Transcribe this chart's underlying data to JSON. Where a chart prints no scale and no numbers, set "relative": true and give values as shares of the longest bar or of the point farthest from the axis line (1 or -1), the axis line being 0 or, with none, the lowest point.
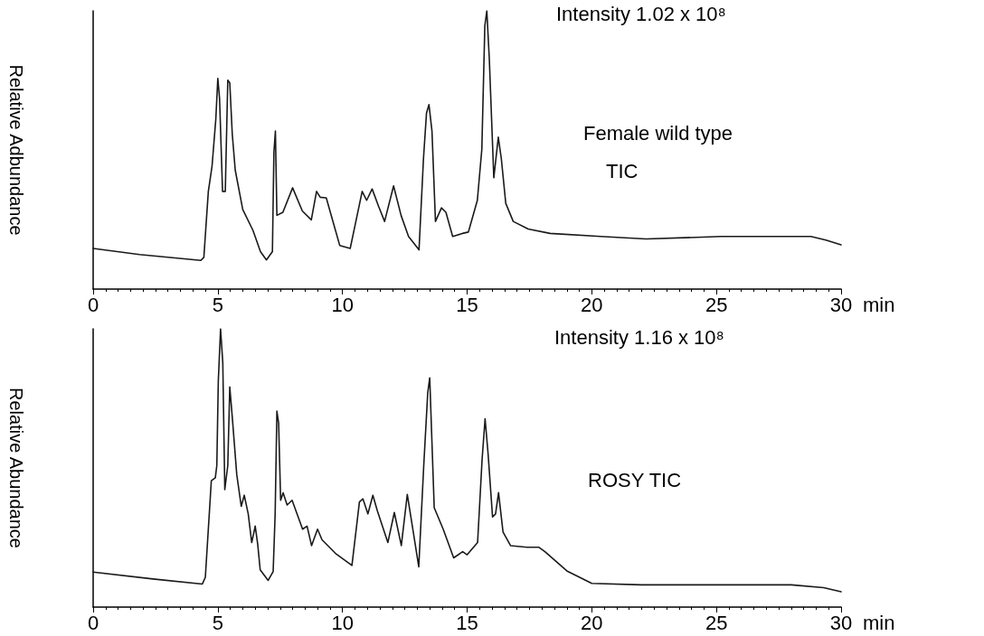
{
  "chart_data": [
    {
      "type": "line",
      "ylabel": "Relative Adbundance",
      "xlabel": "min",
      "relative": true,
      "color": "#1a1a1a",
      "marker": "none",
      "line_style": "solid",
      "xlim": [
        0,
        30
      ],
      "xticks": [
        0,
        5,
        10,
        15,
        20,
        25,
        30
      ],
      "annotations": [
        "Intensity 1.02 x 10⁸",
        "Female wild type",
        "TIC"
      ],
      "x": [
        0,
        1.86,
        4.32,
        4.44,
        4.62,
        4.77,
        4.92,
        5.0,
        5.07,
        5.19,
        5.3,
        5.4,
        5.48,
        5.58,
        5.7,
        6.0,
        6.41,
        6.71,
        6.95,
        7.19,
        7.25,
        7.31,
        7.37,
        7.61,
        8.0,
        8.39,
        8.75,
        8.96,
        9.11,
        9.35,
        9.89,
        10.31,
        10.79,
        10.97,
        11.19,
        11.45,
        11.69,
        12.05,
        12.35,
        12.65,
        13.07,
        13.25,
        13.37,
        13.47,
        13.59,
        13.73,
        13.97,
        14.15,
        14.42,
        14.81,
        15.05,
        15.41,
        15.59,
        15.71,
        15.79,
        15.89,
        16.07,
        16.25,
        16.37,
        16.55,
        16.85,
        17.45,
        18.33,
        20.37,
        22.18,
        25.18,
        28.79,
        29.39,
        30
      ],
      "values": [
        0.146,
        0.124,
        0.103,
        0.114,
        0.351,
        0.443,
        0.611,
        0.757,
        0.686,
        0.351,
        0.351,
        0.751,
        0.741,
        0.557,
        0.427,
        0.286,
        0.211,
        0.135,
        0.105,
        0.135,
        0.492,
        0.568,
        0.265,
        0.276,
        0.364,
        0.281,
        0.249,
        0.351,
        0.33,
        0.328,
        0.157,
        0.146,
        0.351,
        0.319,
        0.36,
        0.297,
        0.243,
        0.371,
        0.265,
        0.189,
        0.141,
        0.47,
        0.632,
        0.663,
        0.568,
        0.243,
        0.292,
        0.276,
        0.189,
        0.2,
        0.205,
        0.319,
        0.503,
        0.946,
        1,
        0.827,
        0.4,
        0.546,
        0.47,
        0.308,
        0.243,
        0.216,
        0.2,
        0.189,
        0.18,
        0.189,
        0.189,
        0.176,
        0.159
      ]
    },
    {
      "type": "line",
      "ylabel": "Relative Abundance",
      "xlabel": "min",
      "relative": true,
      "color": "#1a1a1a",
      "marker": "none",
      "line_style": "solid",
      "xlim": [
        0,
        30
      ],
      "xticks": [
        0,
        5,
        10,
        15,
        20,
        25,
        30
      ],
      "annotations": [
        "Intensity 1.16 x 10⁸",
        "ROSY TIC"
      ],
      "x": [
        0,
        2.4,
        4.38,
        4.5,
        4.74,
        4.9,
        4.96,
        5.02,
        5.11,
        5.2,
        5.28,
        5.4,
        5.48,
        5.58,
        5.76,
        5.94,
        6.06,
        6.22,
        6.36,
        6.5,
        6.6,
        6.7,
        7.02,
        7.22,
        7.3,
        7.37,
        7.44,
        7.52,
        7.62,
        7.78,
        7.98,
        8.4,
        8.58,
        8.76,
        9.0,
        9.18,
        9.72,
        10.38,
        10.68,
        10.82,
        11.02,
        11.22,
        11.4,
        11.82,
        12.08,
        12.36,
        12.6,
        12.84,
        13.06,
        13.26,
        13.42,
        13.5,
        13.68,
        14.04,
        14.46,
        14.82,
        15.0,
        15.42,
        15.6,
        15.72,
        15.84,
        16.02,
        16.14,
        16.26,
        16.44,
        16.74,
        17.4,
        17.88,
        18.12,
        19,
        20,
        22,
        25,
        28,
        29.3,
        30
      ],
      "values": [
        0.126,
        0.101,
        0.083,
        0.107,
        0.454,
        0.465,
        0.509,
        0.813,
        1,
        0.878,
        0.422,
        0.509,
        0.791,
        0.683,
        0.476,
        0.362,
        0.402,
        0.335,
        0.232,
        0.291,
        0.226,
        0.134,
        0.096,
        0.128,
        0.335,
        0.704,
        0.661,
        0.384,
        0.411,
        0.367,
        0.384,
        0.28,
        0.291,
        0.221,
        0.28,
        0.242,
        0.193,
        0.15,
        0.378,
        0.389,
        0.335,
        0.402,
        0.346,
        0.232,
        0.34,
        0.221,
        0.405,
        0.27,
        0.145,
        0.509,
        0.77,
        0.824,
        0.357,
        0.28,
        0.177,
        0.199,
        0.188,
        0.232,
        0.53,
        0.677,
        0.552,
        0.324,
        0.335,
        0.411,
        0.27,
        0.221,
        0.215,
        0.215,
        0.199,
        0.13,
        0.085,
        0.08,
        0.08,
        0.08,
        0.07,
        0.055
      ]
    }
  ]
}
